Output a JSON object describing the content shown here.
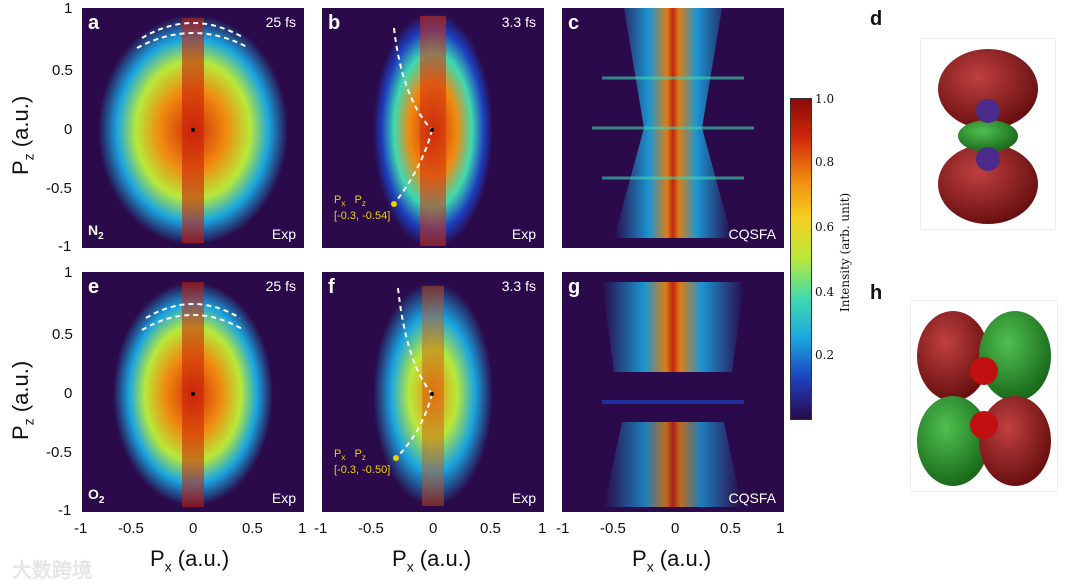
{
  "panels": [
    {
      "letter": "a",
      "time": "25 fs",
      "tag": "Exp",
      "molecule": "N",
      "molecule_sub": "2"
    },
    {
      "letter": "b",
      "time": "3.3 fs",
      "tag": "Exp",
      "ann_px": "P",
      "ann_pz": "P",
      "ann_px_sub": "x",
      "ann_pz_sub": "z",
      "ann_value": "[-0.3, -0.54]"
    },
    {
      "letter": "c",
      "tag": "CQSFA"
    },
    {
      "letter": "e",
      "time": "25 fs",
      "tag": "Exp",
      "molecule": "O",
      "molecule_sub": "2"
    },
    {
      "letter": "f",
      "time": "3.3 fs",
      "tag": "Exp",
      "ann_px": "P",
      "ann_pz": "P",
      "ann_px_sub": "x",
      "ann_pz_sub": "z",
      "ann_value": "[-0.3, -0.50]"
    },
    {
      "letter": "g",
      "tag": "CQSFA"
    }
  ],
  "orbitals": {
    "top_letter": "d",
    "bottom_letter": "h"
  },
  "axes": {
    "y_label": "P",
    "y_label_sub": "z",
    "y_unit": " (a.u.)",
    "x_label": "P",
    "x_label_sub": "x",
    "x_unit": " (a.u.)",
    "y_ticks": [
      "1",
      "0.5",
      "0",
      "-0.5",
      "-1"
    ],
    "x_ticks_left": [
      "-1",
      "-0.5",
      "0",
      "0.5",
      "1"
    ],
    "x_ticks_mid": [
      "-1",
      "-0.5",
      "0",
      "0.5",
      "1"
    ],
    "x_ticks_right": [
      "-1",
      "-0.5",
      "0",
      "0.5",
      "1"
    ]
  },
  "colorbar": {
    "label": "Intensity (arb. unit)",
    "ticks": [
      "1.0",
      "0.8",
      "0.6",
      "0.4",
      "0.2"
    ],
    "colors": [
      "#2a0a4a",
      "#1d3fbf",
      "#1aa5e0",
      "#3fd9b0",
      "#b8e83a",
      "#f5d020",
      "#f08a10",
      "#d02a0a",
      "#8a0a0a"
    ]
  },
  "watermark": "大数跨境"
}
